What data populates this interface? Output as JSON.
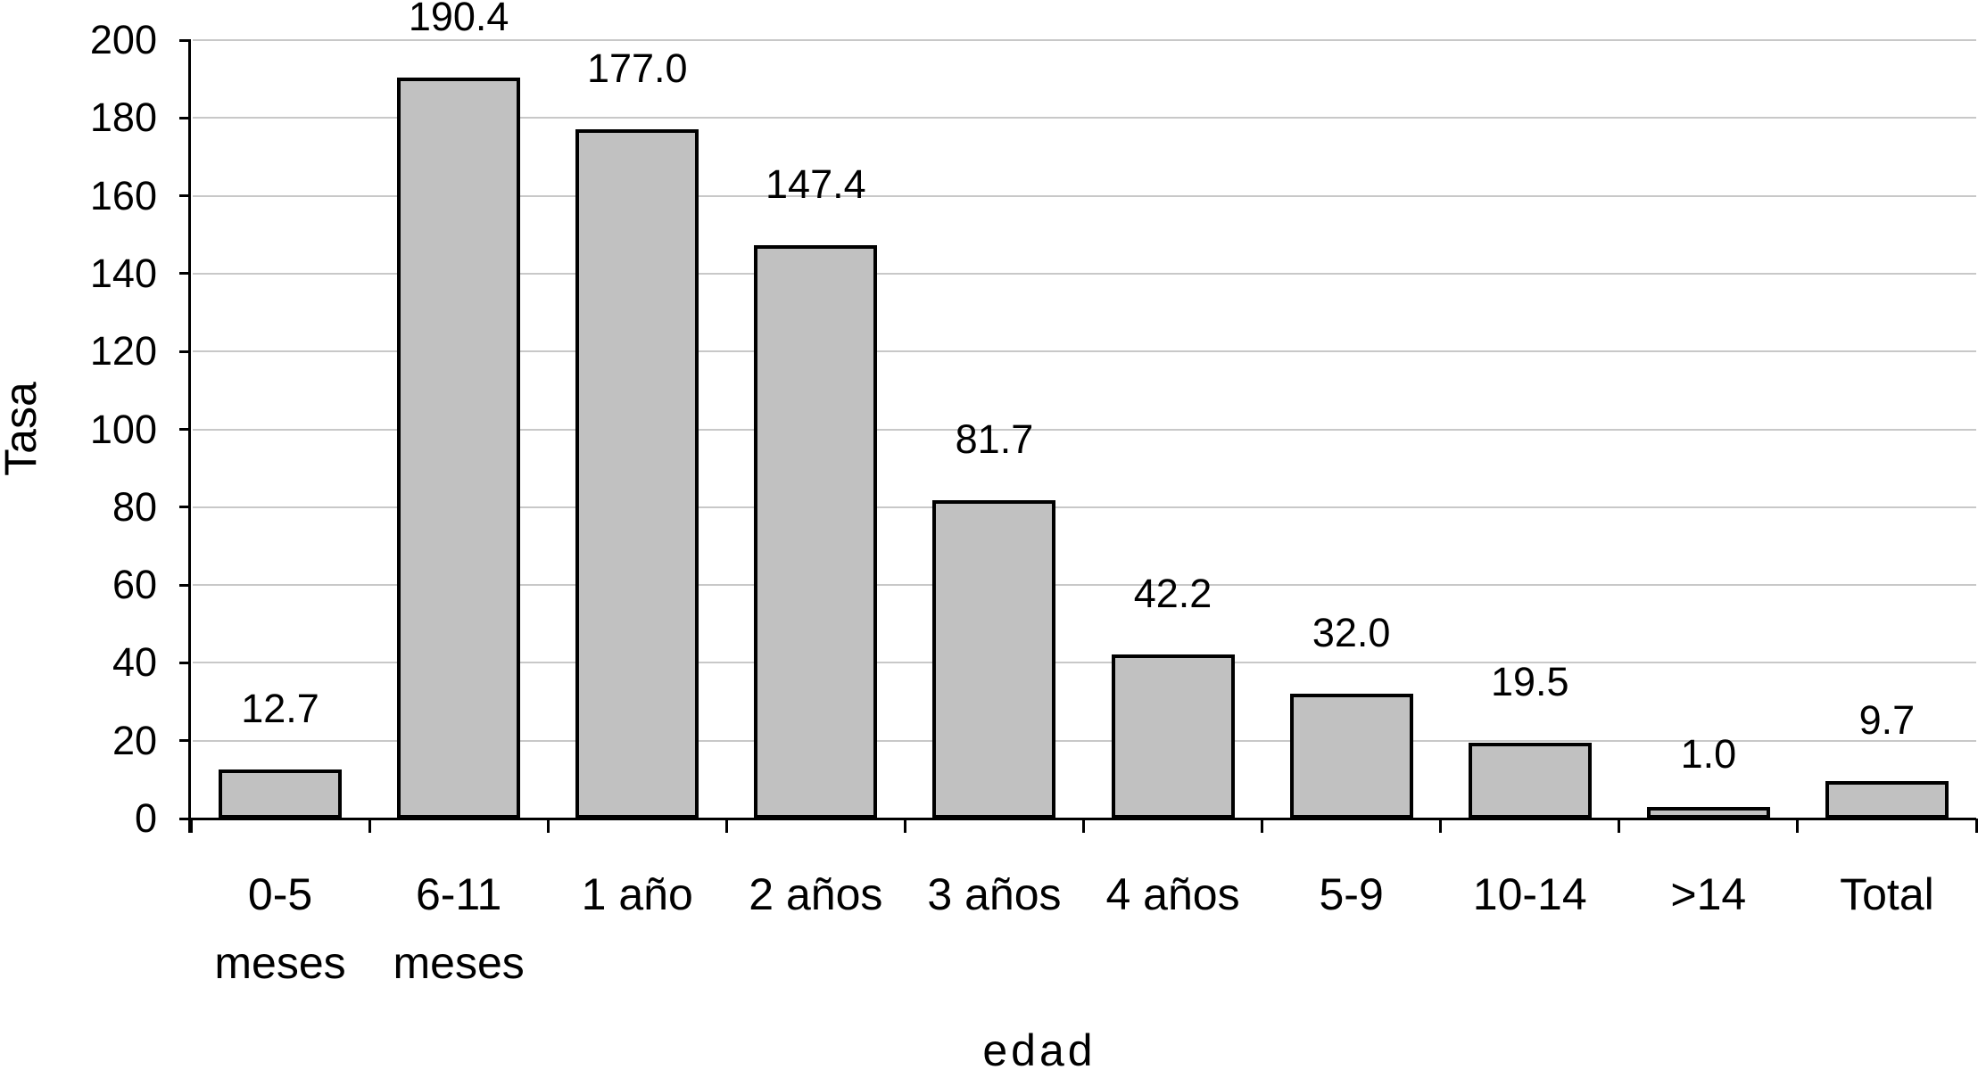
{
  "chart_data": {
    "type": "bar",
    "title": "",
    "xlabel": "edad",
    "ylabel": "Tasa",
    "categories": [
      "0-5 meses",
      "6-11 meses",
      "1 año",
      "2 años",
      "3 años",
      "4 años",
      "5-9",
      "10-14",
      ">14",
      "Total"
    ],
    "category_lines": [
      [
        "0-5",
        "meses"
      ],
      [
        "6-11",
        "meses"
      ],
      [
        "1 año"
      ],
      [
        "2 años"
      ],
      [
        "3 años"
      ],
      [
        "4 años"
      ],
      [
        "5-9"
      ],
      [
        "10-14"
      ],
      [
        ">14"
      ],
      [
        "Total"
      ]
    ],
    "values": [
      12.7,
      190.4,
      177.0,
      147.4,
      81.7,
      42.2,
      32.0,
      19.5,
      1.0,
      9.7
    ],
    "value_labels": [
      "12.7",
      "190.4",
      "177.0",
      "147.4",
      "81.7",
      "42.2",
      "32.0",
      "19.5",
      "1.0",
      "9.7"
    ],
    "ylim": [
      0,
      200
    ],
    "ytick_step": 20,
    "yticks": [
      0,
      20,
      40,
      60,
      80,
      100,
      120,
      140,
      160,
      180,
      200
    ],
    "ytick_labels": [
      "0",
      "20",
      "40",
      "60",
      "80",
      "100",
      "120",
      "140",
      "160",
      "180",
      "200"
    ],
    "grid": true,
    "legend": false,
    "colors": {
      "bar_fill": "#c1c1c1",
      "bar_border": "#000000",
      "gridline": "#c8c8c8",
      "axis": "#000000",
      "background": "#ffffff",
      "text": "#000000"
    }
  }
}
